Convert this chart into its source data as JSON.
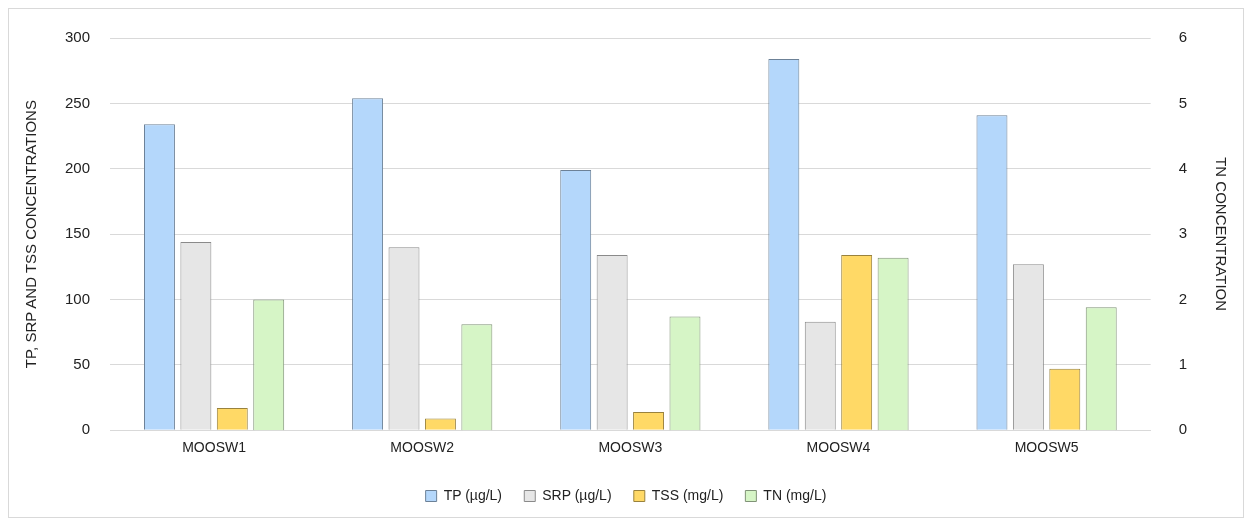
{
  "chart_data": {
    "type": "bar",
    "categories": [
      "MOOSW1",
      "MOOSW2",
      "MOOSW3",
      "MOOSW4",
      "MOOSW5"
    ],
    "series": [
      {
        "name": "TP (µg/L)",
        "color": "#b4d7fb",
        "values": [
          234,
          254,
          199,
          284,
          241
        ]
      },
      {
        "name": "SRP (µg/L)",
        "color": "#e6e6e6",
        "values": [
          144,
          140,
          134,
          83,
          127
        ]
      },
      {
        "name": "TSS (mg/L)",
        "color": "#ffd966",
        "values": [
          17,
          9,
          14,
          134,
          47
        ]
      },
      {
        "name": "TN (mg/L)",
        "color": "#d6f5c6",
        "values": [
          2.0,
          1.62,
          1.74,
          2.64,
          1.88
        ],
        "axis": "y2"
      }
    ],
    "ylabel": "TP, SRP AND TSS CONCENTRATIONS",
    "y2label": "TN CONCENTRATION",
    "ylim": [
      0,
      300
    ],
    "yticks": [
      0,
      50,
      100,
      150,
      200,
      250,
      300
    ],
    "y2lim": [
      0,
      6
    ],
    "y2ticks": [
      0,
      1,
      2,
      3,
      4,
      5,
      6
    ],
    "grid": "y",
    "legend": "bottom"
  }
}
